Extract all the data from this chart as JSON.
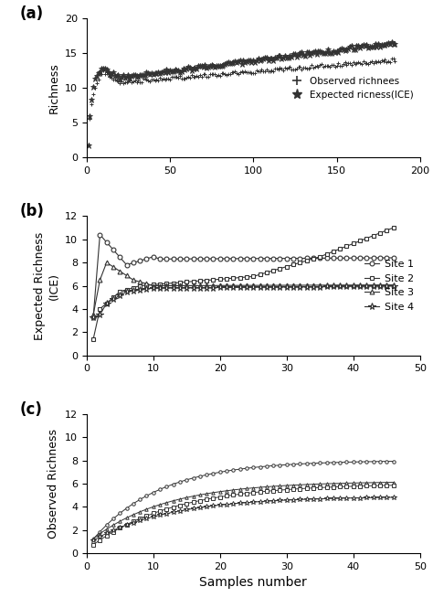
{
  "panel_a": {
    "label": "(a)",
    "ylabel": "Richness",
    "ylim": [
      0,
      20
    ],
    "yticks": [
      0,
      5,
      10,
      15,
      20
    ],
    "xlim": [
      0,
      200
    ],
    "xticks": [
      0,
      50,
      100,
      150,
      200
    ],
    "legend": [
      "Observed richnees",
      "Expected ricness(ICE)"
    ]
  },
  "panel_b": {
    "label": "(b)",
    "ylabel": "Expected Richness\n(ICE)",
    "ylim": [
      0,
      12
    ],
    "yticks": [
      0,
      2,
      4,
      6,
      8,
      10,
      12
    ],
    "xlim": [
      0,
      50
    ],
    "xticks": [
      0,
      10,
      20,
      30,
      40,
      50
    ],
    "legend": [
      "Site 1",
      "Site 2",
      "Site 3",
      "Site 4"
    ]
  },
  "panel_c": {
    "label": "(c)",
    "ylabel": "Observed Richness",
    "ylim": [
      0,
      12
    ],
    "yticks": [
      0,
      2,
      4,
      6,
      8,
      10,
      12
    ],
    "xlim": [
      0,
      50
    ],
    "xticks": [
      0,
      10,
      20,
      30,
      40,
      50
    ]
  },
  "xlabel": "Samples number"
}
